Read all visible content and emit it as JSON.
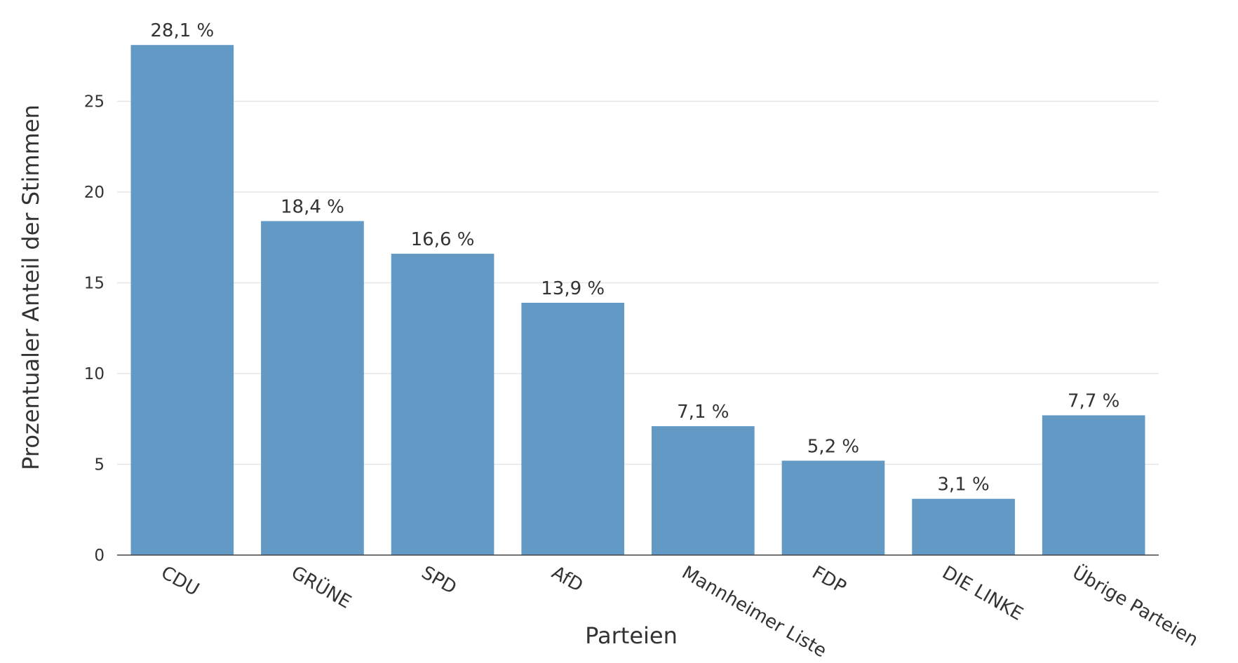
{
  "chart_data": {
    "type": "bar",
    "categories": [
      "CDU",
      "GRÜNE",
      "SPD",
      "AfD",
      "Mannheimer Liste",
      "FDP",
      "DIE LINKE",
      "Übrige Parteien"
    ],
    "values": [
      28.1,
      18.4,
      16.6,
      13.9,
      7.1,
      5.2,
      3.1,
      7.7
    ],
    "data_labels": [
      "28,1 %",
      "18,4 %",
      "16,6 %",
      "13,9 %",
      "7,1 %",
      "5,2 %",
      "3,1 %",
      "7,7 %"
    ],
    "xlabel": "Parteien",
    "ylabel": "Prozentualer Anteil der Stimmen",
    "ylim": [
      0,
      28.1
    ],
    "yticks": [
      0,
      5,
      10,
      15,
      20,
      25
    ],
    "grid": true,
    "legend": "none",
    "bar_color": "#6399c5"
  }
}
